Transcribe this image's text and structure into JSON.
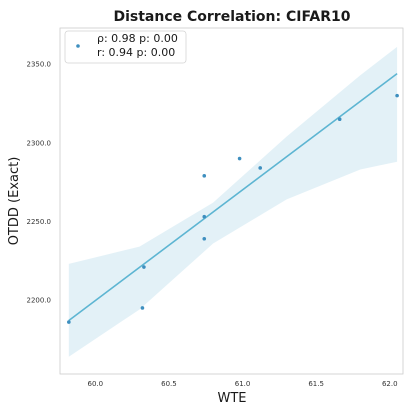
{
  "chart_data": {
    "type": "scatter",
    "title": "Distance Correlation: CIFAR10",
    "xlabel": "WTE",
    "ylabel": "OTDD (Exact)",
    "xlim": [
      59.76,
      62.09
    ],
    "ylim": [
      2153,
      2373
    ],
    "xticks": [
      60.0,
      60.5,
      61.0,
      61.5,
      62.0
    ],
    "xtick_labels": [
      "60.0",
      "60.5",
      "61.0",
      "61.5",
      "62.0"
    ],
    "yticks": [
      2200,
      2250,
      2300,
      2350
    ],
    "ytick_labels": [
      "2200.0",
      "2250.0",
      "2300.0",
      "2350.0"
    ],
    "grid": false,
    "legend_position": "top-left",
    "legend": [
      "ρ: 0.98  p: 0.00",
      "r: 0.94  p: 0.00"
    ],
    "points": [
      {
        "x": 59.82,
        "y": 2186
      },
      {
        "x": 60.32,
        "y": 2195
      },
      {
        "x": 60.33,
        "y": 2221
      },
      {
        "x": 60.74,
        "y": 2279
      },
      {
        "x": 60.74,
        "y": 2253
      },
      {
        "x": 60.74,
        "y": 2239
      },
      {
        "x": 60.98,
        "y": 2290
      },
      {
        "x": 61.12,
        "y": 2284
      },
      {
        "x": 61.66,
        "y": 2315
      },
      {
        "x": 62.05,
        "y": 2330
      }
    ],
    "regression": {
      "x": [
        59.82,
        62.05
      ],
      "y": [
        2187,
        2344
      ]
    },
    "confidence_band": {
      "x": [
        59.82,
        60.3,
        60.8,
        61.3,
        61.8,
        62.05
      ],
      "upper": [
        2223,
        2234,
        2262,
        2304,
        2343,
        2361
      ],
      "lower": [
        2164,
        2194,
        2236,
        2264,
        2283,
        2288
      ]
    },
    "colors": {
      "point": "#3e8fbf",
      "line": "#5db5d2",
      "band": "#d7ebf4",
      "axis": "#cccccc"
    }
  }
}
